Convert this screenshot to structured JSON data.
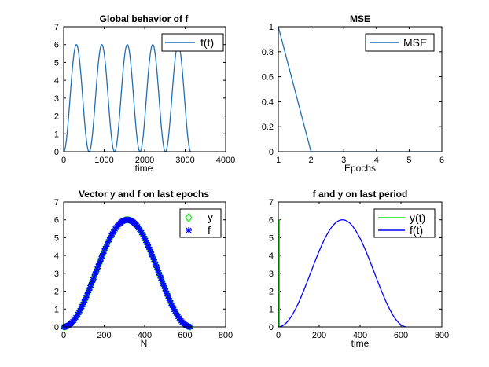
{
  "colors": {
    "f": "#1f6fb5",
    "y": "#00ee00",
    "blue": "#0000ff",
    "axis": "#000000"
  },
  "chart_data": [
    {
      "type": "line",
      "title": "Global behavior of f",
      "xlabel": "time",
      "ylabel": "",
      "xlim": [
        0,
        4000
      ],
      "ylim": [
        0,
        7
      ],
      "xticks": [
        "0",
        "1000",
        "2000",
        "3000",
        "4000"
      ],
      "yticks": [
        "0",
        "1",
        "2",
        "3",
        "4",
        "5",
        "6",
        "7"
      ],
      "legend": [
        "f(t)"
      ],
      "series": [
        {
          "name": "f(t)",
          "function": "3 - 3*cos(x/100)",
          "x_range": [
            0,
            3140
          ],
          "color": "#1f6fb5",
          "style": "line"
        }
      ]
    },
    {
      "type": "line",
      "title": "MSE",
      "xlabel": "Epochs",
      "ylabel": "",
      "xlim": [
        1,
        6
      ],
      "ylim": [
        0,
        1
      ],
      "xticks": [
        "1",
        "2",
        "3",
        "4",
        "5",
        "6"
      ],
      "yticks": [
        "0",
        "0.2",
        "0.4",
        "0.6",
        "0.8",
        "1"
      ],
      "legend": [
        "MSE"
      ],
      "series": [
        {
          "name": "MSE",
          "x": [
            1,
            2,
            3,
            4,
            5,
            6
          ],
          "values": [
            1,
            0,
            0,
            0,
            0,
            0
          ],
          "color": "#1f6fb5",
          "style": "line"
        }
      ]
    },
    {
      "type": "scatter",
      "title": "Vector y and f on last epochs",
      "xlabel": "N",
      "ylabel": "",
      "xlim": [
        0,
        800
      ],
      "ylim": [
        0,
        7
      ],
      "xticks": [
        "0",
        "200",
        "400",
        "600",
        "800"
      ],
      "yticks": [
        "0",
        "1",
        "2",
        "3",
        "4",
        "5",
        "6",
        "7"
      ],
      "legend": [
        "y",
        "f"
      ],
      "series": [
        {
          "name": "y",
          "function": "3 - 3*cos(x/100)",
          "x_range": [
            0,
            628
          ],
          "color": "#00ee00",
          "style": "diamond"
        },
        {
          "name": "f",
          "function": "3 - 3*cos(x/100)",
          "x_range": [
            0,
            628
          ],
          "color": "#0000ff",
          "style": "asterisk"
        }
      ]
    },
    {
      "type": "line",
      "title": "f and y on last period",
      "xlabel": "time",
      "ylabel": "",
      "xlim": [
        0,
        800
      ],
      "ylim": [
        0,
        7
      ],
      "xticks": [
        "0",
        "200",
        "400",
        "600",
        "800"
      ],
      "yticks": [
        "0",
        "1",
        "2",
        "3",
        "4",
        "5",
        "6",
        "7"
      ],
      "legend": [
        "y(t)",
        "f(t)"
      ],
      "series": [
        {
          "name": "y(t)",
          "x": [
            0,
            0,
            5,
            5
          ],
          "values": [
            0,
            6,
            6,
            0
          ],
          "color": "#00ee00",
          "style": "line"
        },
        {
          "name": "f(t)",
          "function": "3 - 3*cos(x/100)",
          "x_range": [
            0,
            628
          ],
          "color": "#0000ff",
          "style": "line"
        }
      ]
    }
  ]
}
